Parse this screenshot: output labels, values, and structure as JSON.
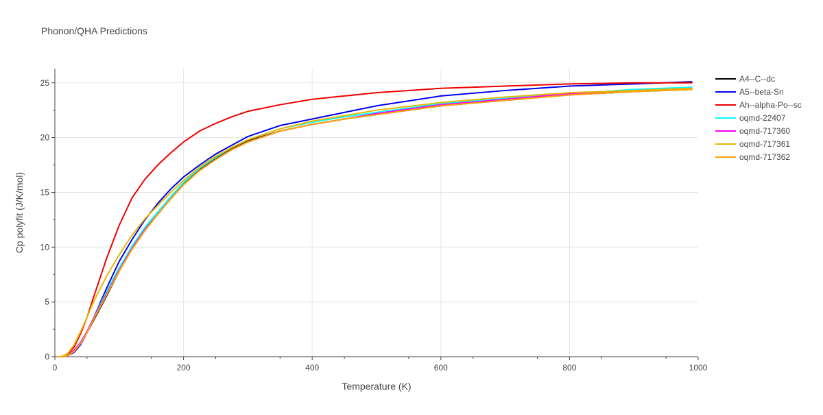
{
  "chart_data": {
    "type": "line",
    "title": "Phonon/QHA Predictions",
    "xlabel": "Temperature (K)",
    "ylabel": "Cp polyfit (J/K/mol)",
    "xlim": [
      0,
      1000
    ],
    "ylim": [
      0,
      26.3
    ],
    "xticks": [
      0,
      200,
      400,
      600,
      800,
      1000
    ],
    "yticks": [
      0,
      5,
      10,
      15,
      20,
      25
    ],
    "grid": true,
    "legend_position": "right",
    "series": [
      {
        "name": "A4--C--dc",
        "color": "#000000",
        "points": [
          [
            5,
            0
          ],
          [
            10,
            0
          ],
          [
            20,
            0.1
          ],
          [
            30,
            0.5
          ],
          [
            40,
            1.2
          ],
          [
            50,
            2.2
          ],
          [
            60,
            3.3
          ],
          [
            80,
            5.5
          ],
          [
            100,
            7.8
          ],
          [
            120,
            9.9
          ],
          [
            140,
            11.7
          ],
          [
            160,
            13.1
          ],
          [
            180,
            14.5
          ],
          [
            200,
            15.8
          ],
          [
            225,
            17.1
          ],
          [
            250,
            18.1
          ],
          [
            275,
            19.0
          ],
          [
            300,
            19.7
          ],
          [
            350,
            20.6
          ],
          [
            400,
            21.2
          ],
          [
            450,
            21.7
          ],
          [
            500,
            22.1
          ],
          [
            600,
            22.9
          ],
          [
            700,
            23.4
          ],
          [
            800,
            23.9
          ],
          [
            900,
            24.2
          ],
          [
            990,
            24.4
          ]
        ]
      },
      {
        "name": "A5--beta-Sn",
        "color": "#0000ee",
        "points": [
          [
            5,
            0
          ],
          [
            10,
            0
          ],
          [
            20,
            0.1
          ],
          [
            30,
            0.4
          ],
          [
            40,
            1.1
          ],
          [
            50,
            2.2
          ],
          [
            60,
            3.5
          ],
          [
            80,
            6.2
          ],
          [
            100,
            8.7
          ],
          [
            120,
            10.7
          ],
          [
            140,
            12.5
          ],
          [
            160,
            14.0
          ],
          [
            180,
            15.3
          ],
          [
            200,
            16.4
          ],
          [
            225,
            17.5
          ],
          [
            250,
            18.5
          ],
          [
            275,
            19.3
          ],
          [
            300,
            20.1
          ],
          [
            350,
            21.1
          ],
          [
            400,
            21.7
          ],
          [
            450,
            22.3
          ],
          [
            500,
            22.9
          ],
          [
            600,
            23.8
          ],
          [
            700,
            24.3
          ],
          [
            800,
            24.7
          ],
          [
            900,
            24.9
          ],
          [
            990,
            25.1
          ]
        ]
      },
      {
        "name": "Ah--alpha-Po--sc",
        "color": "#ee0000",
        "points": [
          [
            5,
            0
          ],
          [
            10,
            0
          ],
          [
            20,
            0.2
          ],
          [
            30,
            0.9
          ],
          [
            40,
            2.1
          ],
          [
            50,
            3.6
          ],
          [
            60,
            5.4
          ],
          [
            80,
            8.9
          ],
          [
            100,
            12.0
          ],
          [
            120,
            14.5
          ],
          [
            140,
            16.2
          ],
          [
            160,
            17.5
          ],
          [
            180,
            18.6
          ],
          [
            200,
            19.6
          ],
          [
            225,
            20.6
          ],
          [
            250,
            21.3
          ],
          [
            275,
            21.9
          ],
          [
            300,
            22.4
          ],
          [
            350,
            23.0
          ],
          [
            400,
            23.5
          ],
          [
            450,
            23.8
          ],
          [
            500,
            24.1
          ],
          [
            600,
            24.5
          ],
          [
            700,
            24.7
          ],
          [
            800,
            24.9
          ],
          [
            900,
            25.0
          ],
          [
            990,
            25.0
          ]
        ]
      },
      {
        "name": "oqmd-22407",
        "color": "#00ffff",
        "points": [
          [
            5,
            0
          ],
          [
            10,
            0
          ],
          [
            20,
            0.1
          ],
          [
            30,
            0.5
          ],
          [
            40,
            1.3
          ],
          [
            50,
            2.3
          ],
          [
            60,
            3.5
          ],
          [
            80,
            5.9
          ],
          [
            100,
            8.1
          ],
          [
            120,
            10.1
          ],
          [
            140,
            11.8
          ],
          [
            160,
            13.2
          ],
          [
            180,
            14.6
          ],
          [
            200,
            15.9
          ],
          [
            225,
            17.2
          ],
          [
            250,
            18.2
          ],
          [
            275,
            19.1
          ],
          [
            300,
            19.8
          ],
          [
            350,
            20.8
          ],
          [
            400,
            21.4
          ],
          [
            450,
            21.9
          ],
          [
            500,
            22.3
          ],
          [
            600,
            23.1
          ],
          [
            700,
            23.6
          ],
          [
            800,
            24.0
          ],
          [
            900,
            24.4
          ],
          [
            990,
            24.6
          ]
        ]
      },
      {
        "name": "oqmd-717360",
        "color": "#ff00ff",
        "points": [
          [
            5,
            0
          ],
          [
            10,
            0
          ],
          [
            20,
            0.1
          ],
          [
            30,
            0.6
          ],
          [
            40,
            1.3
          ],
          [
            50,
            2.3
          ],
          [
            60,
            3.5
          ],
          [
            80,
            5.7
          ],
          [
            100,
            7.9
          ],
          [
            120,
            9.9
          ],
          [
            140,
            11.6
          ],
          [
            160,
            13.0
          ],
          [
            180,
            14.4
          ],
          [
            200,
            15.7
          ],
          [
            225,
            17.0
          ],
          [
            250,
            18.0
          ],
          [
            275,
            18.9
          ],
          [
            300,
            19.6
          ],
          [
            350,
            20.6
          ],
          [
            400,
            21.2
          ],
          [
            450,
            21.7
          ],
          [
            500,
            22.2
          ],
          [
            600,
            23.0
          ],
          [
            700,
            23.5
          ],
          [
            800,
            24.0
          ],
          [
            900,
            24.3
          ],
          [
            990,
            24.5
          ]
        ]
      },
      {
        "name": "oqmd-717361",
        "color": "#e6b800",
        "points": [
          [
            5,
            0
          ],
          [
            10,
            0
          ],
          [
            20,
            0.3
          ],
          [
            30,
            1.1
          ],
          [
            40,
            2.3
          ],
          [
            50,
            3.6
          ],
          [
            60,
            5.0
          ],
          [
            80,
            7.3
          ],
          [
            100,
            9.3
          ],
          [
            120,
            11.1
          ],
          [
            140,
            12.6
          ],
          [
            160,
            13.8
          ],
          [
            180,
            15.0
          ],
          [
            200,
            16.1
          ],
          [
            225,
            17.3
          ],
          [
            250,
            18.3
          ],
          [
            275,
            19.1
          ],
          [
            300,
            19.8
          ],
          [
            350,
            20.8
          ],
          [
            400,
            21.5
          ],
          [
            450,
            22.0
          ],
          [
            500,
            22.5
          ],
          [
            600,
            23.2
          ],
          [
            700,
            23.7
          ],
          [
            800,
            24.1
          ],
          [
            900,
            24.3
          ],
          [
            990,
            24.5
          ]
        ]
      },
      {
        "name": "oqmd-717362",
        "color": "#ffa500",
        "points": [
          [
            5,
            0
          ],
          [
            10,
            0
          ],
          [
            20,
            0.1
          ],
          [
            30,
            0.5
          ],
          [
            40,
            1.2
          ],
          [
            50,
            2.2
          ],
          [
            60,
            3.4
          ],
          [
            80,
            5.6
          ],
          [
            100,
            7.8
          ],
          [
            120,
            9.8
          ],
          [
            140,
            11.5
          ],
          [
            160,
            13.0
          ],
          [
            180,
            14.4
          ],
          [
            200,
            15.7
          ],
          [
            225,
            17.0
          ],
          [
            250,
            18.0
          ],
          [
            275,
            18.9
          ],
          [
            300,
            19.6
          ],
          [
            350,
            20.6
          ],
          [
            400,
            21.2
          ],
          [
            450,
            21.7
          ],
          [
            500,
            22.1
          ],
          [
            600,
            22.9
          ],
          [
            700,
            23.4
          ],
          [
            800,
            23.9
          ],
          [
            900,
            24.2
          ],
          [
            990,
            24.4
          ]
        ]
      }
    ]
  }
}
